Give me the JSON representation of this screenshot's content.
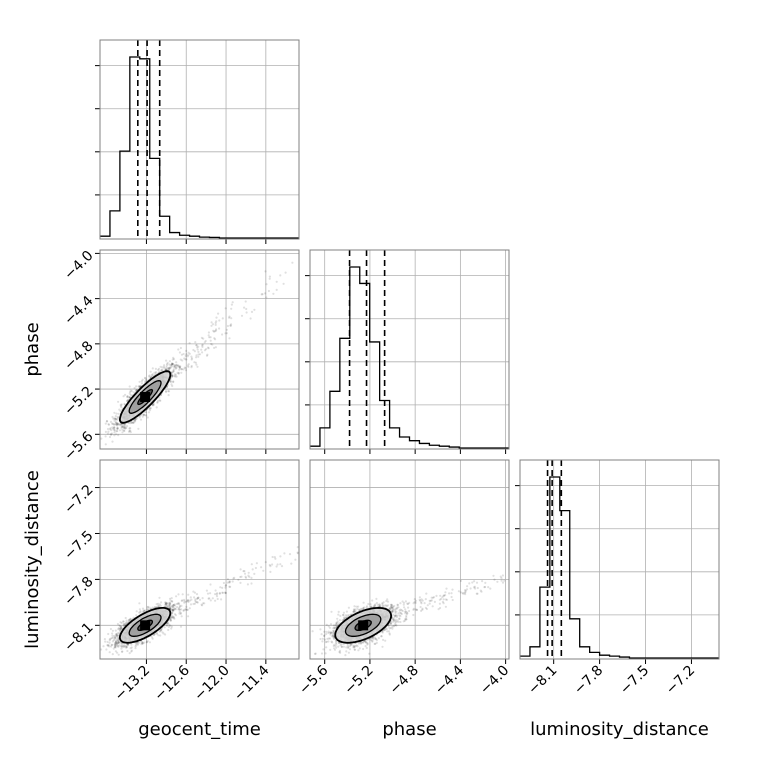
{
  "chart_data": {
    "type": "corner",
    "parameters": [
      "geocent_time",
      "phase",
      "luminosity_distance"
    ],
    "axis_ranges": {
      "geocent_time": [
        -13.9,
        -10.9
      ],
      "phase": [
        -5.73,
        -3.97
      ],
      "luminosity_distance": [
        -8.32,
        -7.02
      ]
    },
    "ticks": {
      "geocent_time": [
        -13.2,
        -12.6,
        -12.0,
        -11.4
      ],
      "phase": [
        -5.6,
        -5.2,
        -4.8,
        -4.4,
        -4.0
      ],
      "luminosity_distance": [
        -8.1,
        -7.8,
        -7.5,
        -7.2
      ]
    },
    "tick_labels": {
      "geocent_time": [
        "−13.2",
        "−12.6",
        "−12.0",
        "−11.4"
      ],
      "phase": [
        "−5.6",
        "−5.2",
        "−4.8",
        "−4.4",
        "−4.0"
      ],
      "luminosity_distance": [
        "−8.1",
        "−7.8",
        "−7.5",
        "−7.2"
      ]
    },
    "quantiles": {
      "geocent_time": [
        -13.33,
        -13.19,
        -13.0
      ],
      "phase": [
        -5.38,
        -5.23,
        -5.07
      ],
      "luminosity_distance": [
        -8.14,
        -8.11,
        -8.05
      ]
    },
    "histograms": {
      "geocent_time": {
        "edges": [
          -13.9,
          -13.75,
          -13.6,
          -13.45,
          -13.3,
          -13.15,
          -13.0,
          -12.85,
          -12.7,
          -12.55,
          -12.4,
          -12.25,
          -12.1,
          -11.95,
          -11.8,
          -11.65,
          -11.5,
          -11.35,
          -11.2,
          -11.05,
          -10.9
        ],
        "counts": [
          0.01,
          0.15,
          0.48,
          1.0,
          0.99,
          0.44,
          0.12,
          0.03,
          0.015,
          0.01,
          0.005,
          0.003,
          0,
          0,
          0,
          0,
          0,
          0,
          0,
          0
        ]
      },
      "phase": {
        "edges": [
          -5.73,
          -5.642,
          -5.554,
          -5.466,
          -5.378,
          -5.29,
          -5.202,
          -5.114,
          -5.026,
          -4.938,
          -4.85,
          -4.762,
          -4.674,
          -4.586,
          -4.498,
          -4.41,
          -4.322,
          -4.234,
          -4.146,
          -4.058,
          -3.97
        ],
        "counts": [
          0.01,
          0.11,
          0.31,
          0.6,
          0.99,
          0.9,
          0.58,
          0.26,
          0.11,
          0.06,
          0.04,
          0.025,
          0.015,
          0.01,
          0.005,
          0,
          0,
          0,
          0,
          0
        ]
      },
      "luminosity_distance": {
        "edges": [
          -8.32,
          -8.255,
          -8.19,
          -8.125,
          -8.06,
          -7.995,
          -7.93,
          -7.865,
          -7.8,
          -7.735,
          -7.67,
          -7.605,
          -7.54,
          -7.475,
          -7.41,
          -7.345,
          -7.28,
          -7.215,
          -7.15,
          -7.085,
          -7.02
        ],
        "counts": [
          0.01,
          0.06,
          0.38,
          0.97,
          0.79,
          0.21,
          0.06,
          0.03,
          0.015,
          0.01,
          0.005,
          0,
          0,
          0,
          0,
          0,
          0,
          0,
          0,
          0
        ]
      }
    },
    "pairs": [
      {
        "x": "geocent_time",
        "y": "phase",
        "center": [
          -13.22,
          -5.27
        ],
        "spread": [
          0.2,
          0.12
        ],
        "rho": 0.87
      },
      {
        "x": "geocent_time",
        "y": "luminosity_distance",
        "center": [
          -13.22,
          -8.1
        ],
        "spread": [
          0.2,
          0.06
        ],
        "rho": 0.7
      },
      {
        "x": "phase",
        "y": "luminosity_distance",
        "center": [
          -5.26,
          -8.1
        ],
        "spread": [
          0.13,
          0.06
        ],
        "rho": 0.55
      }
    ],
    "contour_levels": [
      0.5,
      1.0,
      1.5
    ],
    "grid": true
  }
}
